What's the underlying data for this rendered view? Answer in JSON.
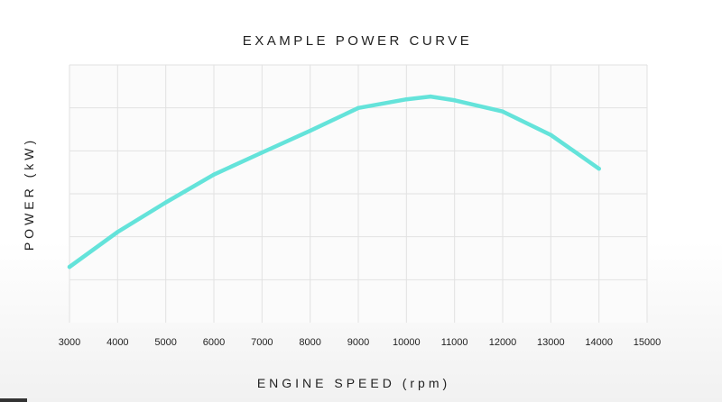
{
  "chart_data": {
    "type": "line",
    "title": "EXAMPLE POWER CURVE",
    "xlabel": "ENGINE SPEED (rpm)",
    "ylabel": "POWER (kW)",
    "xlim": [
      3000,
      15000
    ],
    "ylim": [
      0,
      110
    ],
    "x_ticks": [
      3000,
      4000,
      5000,
      6000,
      7000,
      8000,
      9000,
      10000,
      11000,
      12000,
      13000,
      14000,
      15000
    ],
    "y_gridlines": [
      18.3,
      36.7,
      55,
      73.3,
      91.7,
      110
    ],
    "grid": true,
    "series": [
      {
        "name": "Power",
        "color": "#64e3da",
        "x": [
          3000,
          4000,
          5000,
          6000,
          7000,
          8000,
          9000,
          10000,
          10500,
          11000,
          12000,
          13000,
          14000
        ],
        "y": [
          23.8,
          38.7,
          51.3,
          63.2,
          72.6,
          81.9,
          91.6,
          95.3,
          96.5,
          94.9,
          90.1,
          80.1,
          65.7
        ]
      }
    ]
  }
}
